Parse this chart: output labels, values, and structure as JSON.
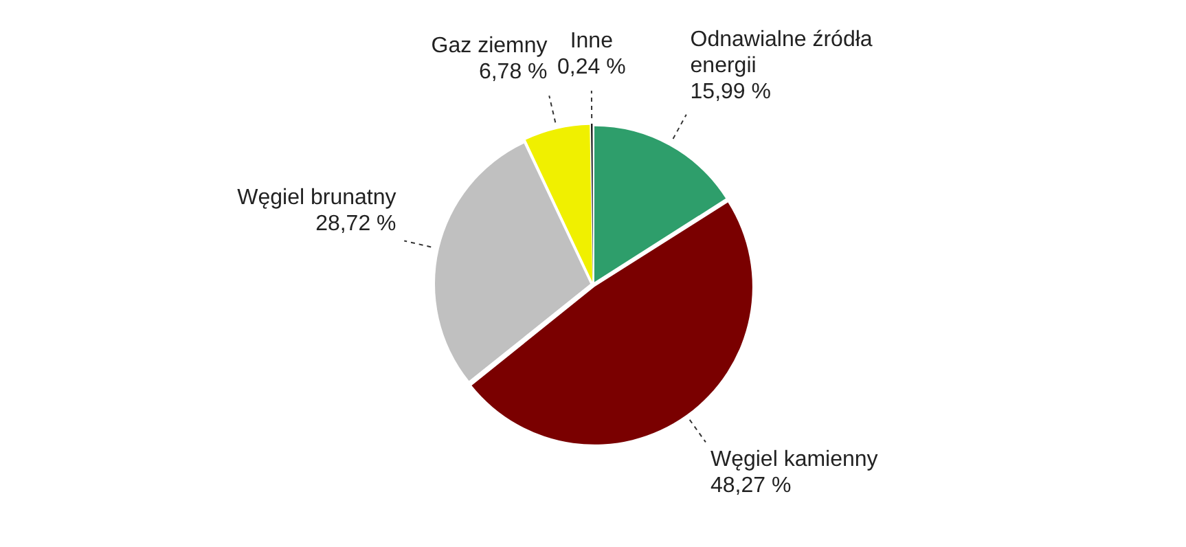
{
  "chart_data": {
    "type": "pie",
    "categories": [
      "Odnawialne źródła energii",
      "Węgiel kamienny",
      "Węgiel brunatny",
      "Gaz ziemny",
      "Inne"
    ],
    "values": [
      15.99,
      48.27,
      28.72,
      6.78,
      0.24
    ],
    "colors": [
      "#2e9e6b",
      "#7a0000",
      "#c0c0c0",
      "#f0f000",
      "#000000"
    ],
    "value_labels": [
      "15,99 %",
      "48,27 %",
      "28,72 %",
      "6,78 %",
      "0,24 %"
    ],
    "legend": false
  }
}
